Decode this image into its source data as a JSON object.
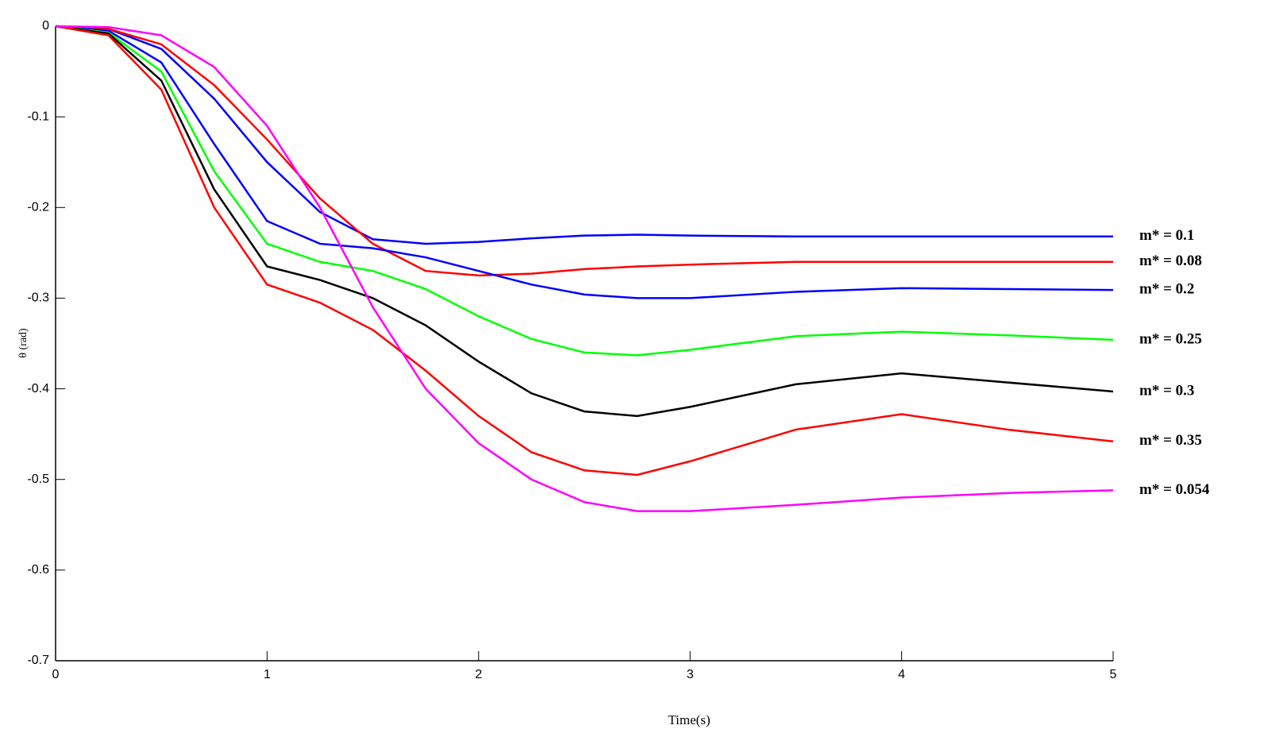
{
  "chart_data": {
    "type": "line",
    "xlabel": "Time(s)",
    "ylabel": "θ (rad)",
    "x": [
      0,
      0.25,
      0.5,
      0.75,
      1,
      1.25,
      1.5,
      1.75,
      2,
      2.25,
      2.5,
      2.75,
      3,
      3.5,
      4,
      4.5,
      5
    ],
    "xlim": [
      0,
      5
    ],
    "xticks": [
      0,
      1,
      2,
      3,
      4,
      5
    ],
    "ylim": [
      -0.7,
      0
    ],
    "yticks": [
      0,
      -0.1,
      -0.2,
      -0.3,
      -0.4,
      -0.5,
      -0.6,
      -0.7
    ],
    "grid": false,
    "series": [
      {
        "name": "m* = 0.1",
        "color": "#0000ff",
        "values": [
          0,
          -0.003,
          -0.025,
          -0.08,
          -0.15,
          -0.205,
          -0.235,
          -0.24,
          -0.238,
          -0.234,
          -0.231,
          -0.23,
          -0.231,
          -0.232,
          -0.232,
          -0.232,
          -0.232
        ]
      },
      {
        "name": "m* = 0.08",
        "color": "#ff0000",
        "values": [
          0,
          -0.003,
          -0.02,
          -0.065,
          -0.125,
          -0.19,
          -0.24,
          -0.27,
          -0.275,
          -0.273,
          -0.268,
          -0.265,
          -0.263,
          -0.26,
          -0.26,
          -0.26,
          -0.26
        ]
      },
      {
        "name": "m* = 0.2",
        "color": "#0000ff",
        "values": [
          0,
          -0.005,
          -0.04,
          -0.13,
          -0.215,
          -0.24,
          -0.245,
          -0.255,
          -0.27,
          -0.285,
          -0.296,
          -0.3,
          -0.3,
          -0.293,
          -0.289,
          -0.29,
          -0.291
        ]
      },
      {
        "name": "m* = 0.25",
        "color": "#00ff00",
        "values": [
          0,
          -0.007,
          -0.05,
          -0.16,
          -0.24,
          -0.26,
          -0.27,
          -0.29,
          -0.32,
          -0.345,
          -0.36,
          -0.363,
          -0.357,
          -0.342,
          -0.337,
          -0.341,
          -0.346
        ]
      },
      {
        "name": "m* = 0.3",
        "color": "#000000",
        "values": [
          0,
          -0.008,
          -0.06,
          -0.18,
          -0.265,
          -0.28,
          -0.3,
          -0.33,
          -0.37,
          -0.405,
          -0.425,
          -0.43,
          -0.42,
          -0.395,
          -0.383,
          -0.393,
          -0.403
        ]
      },
      {
        "name": "m* = 0.35",
        "color": "#ff0000",
        "values": [
          0,
          -0.01,
          -0.07,
          -0.2,
          -0.285,
          -0.305,
          -0.335,
          -0.38,
          -0.43,
          -0.47,
          -0.49,
          -0.495,
          -0.48,
          -0.445,
          -0.428,
          -0.445,
          -0.458
        ]
      },
      {
        "name": "m* = 0.054",
        "color": "#ff00ff",
        "values": [
          0,
          -0.001,
          -0.01,
          -0.045,
          -0.11,
          -0.2,
          -0.31,
          -0.4,
          -0.46,
          -0.5,
          -0.525,
          -0.535,
          -0.535,
          -0.528,
          -0.52,
          -0.515,
          -0.512
        ]
      }
    ]
  }
}
